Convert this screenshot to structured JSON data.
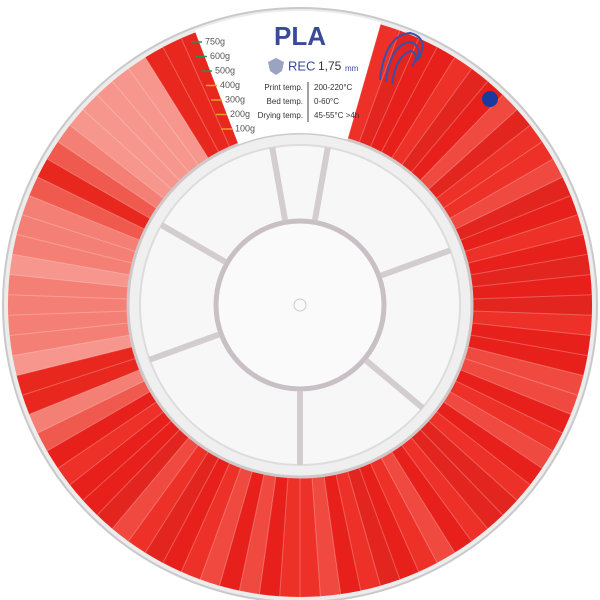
{
  "label": {
    "title": "PLA",
    "brand": "REC",
    "diameter": "1,75",
    "diameter_unit": "mm",
    "specs": [
      [
        "Print temp.",
        "200-220°C"
      ],
      [
        "Bed temp.",
        "0-60°C"
      ],
      [
        "Drying temp.",
        "45-55°C >4h"
      ]
    ],
    "scale": [
      "750g",
      "600g",
      "500g",
      "400g",
      "300g",
      "200g",
      "100g"
    ]
  }
}
